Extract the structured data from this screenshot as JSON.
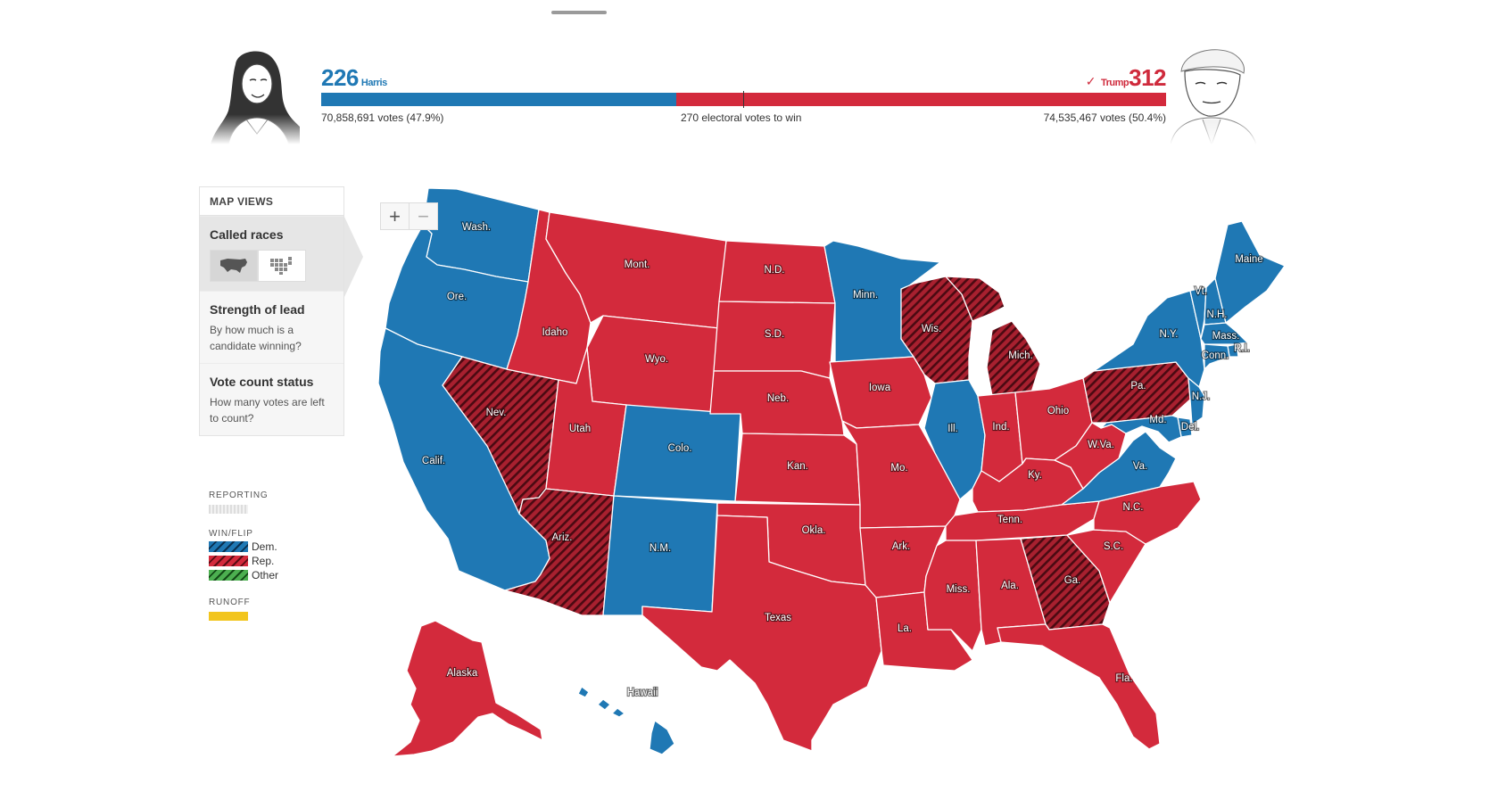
{
  "scoreboard": {
    "harris": {
      "ev": "226",
      "name": "Harris",
      "votes": "70,858,691 votes (47.9%)",
      "color": "#1f78b4",
      "ev_value": 226
    },
    "trump": {
      "ev": "312",
      "name": "Trump",
      "votes": "74,535,467 votes (50.4%)",
      "color": "#d32a3c",
      "ev_value": 312,
      "winner": true
    },
    "threshold": "270 electoral votes to win",
    "total_ev": 538
  },
  "panel": {
    "heading": "MAP VIEWS",
    "views": [
      {
        "title": "Called races",
        "desc": "",
        "active": true
      },
      {
        "title": "Strength of lead",
        "desc": "By how much is a candidate winning?"
      },
      {
        "title": "Vote count status",
        "desc": "How many votes are left to count?"
      }
    ],
    "toggle_icons": [
      "us-map-icon",
      "cartogram-icon"
    ]
  },
  "legend": {
    "reporting": "REPORTING",
    "winflip": "WIN/FLIP",
    "dem": "Dem.",
    "rep": "Rep.",
    "other": "Other",
    "runoff": "RUNOFF",
    "colors": {
      "dem": "#1f78b4",
      "rep": "#d32a3c",
      "other": "#4caf50",
      "runoff": "#f2c51d"
    }
  },
  "zoom": {
    "in": "+",
    "out": "−"
  },
  "states": [
    {
      "abbr": "Wash.",
      "winner": "dem",
      "flip": false
    },
    {
      "abbr": "Ore.",
      "winner": "dem",
      "flip": false
    },
    {
      "abbr": "Calif.",
      "winner": "dem",
      "flip": false
    },
    {
      "abbr": "Nev.",
      "winner": "rep",
      "flip": true
    },
    {
      "abbr": "Idaho",
      "winner": "rep",
      "flip": false
    },
    {
      "abbr": "Mont.",
      "winner": "rep",
      "flip": false
    },
    {
      "abbr": "Wyo.",
      "winner": "rep",
      "flip": false
    },
    {
      "abbr": "Utah",
      "winner": "rep",
      "flip": false
    },
    {
      "abbr": "Ariz.",
      "winner": "rep",
      "flip": true
    },
    {
      "abbr": "Colo.",
      "winner": "dem",
      "flip": false
    },
    {
      "abbr": "N.M.",
      "winner": "dem",
      "flip": false
    },
    {
      "abbr": "N.D.",
      "winner": "rep",
      "flip": false
    },
    {
      "abbr": "S.D.",
      "winner": "rep",
      "flip": false
    },
    {
      "abbr": "Neb.",
      "winner": "rep",
      "flip": false
    },
    {
      "abbr": "Kan.",
      "winner": "rep",
      "flip": false
    },
    {
      "abbr": "Okla.",
      "winner": "rep",
      "flip": false
    },
    {
      "abbr": "Texas",
      "winner": "rep",
      "flip": false
    },
    {
      "abbr": "Minn.",
      "winner": "dem",
      "flip": false
    },
    {
      "abbr": "Iowa",
      "winner": "rep",
      "flip": false
    },
    {
      "abbr": "Mo.",
      "winner": "rep",
      "flip": false
    },
    {
      "abbr": "Ark.",
      "winner": "rep",
      "flip": false
    },
    {
      "abbr": "La.",
      "winner": "rep",
      "flip": false
    },
    {
      "abbr": "Wis.",
      "winner": "rep",
      "flip": true
    },
    {
      "abbr": "Ill.",
      "winner": "dem",
      "flip": false
    },
    {
      "abbr": "Mich.",
      "winner": "rep",
      "flip": true
    },
    {
      "abbr": "Ind.",
      "winner": "rep",
      "flip": false
    },
    {
      "abbr": "Ohio",
      "winner": "rep",
      "flip": false
    },
    {
      "abbr": "Ky.",
      "winner": "rep",
      "flip": false
    },
    {
      "abbr": "Tenn.",
      "winner": "rep",
      "flip": false
    },
    {
      "abbr": "Miss.",
      "winner": "rep",
      "flip": false
    },
    {
      "abbr": "Ala.",
      "winner": "rep",
      "flip": false
    },
    {
      "abbr": "Ga.",
      "winner": "rep",
      "flip": true
    },
    {
      "abbr": "Fla.",
      "winner": "rep",
      "flip": false
    },
    {
      "abbr": "S.C.",
      "winner": "rep",
      "flip": false
    },
    {
      "abbr": "N.C.",
      "winner": "rep",
      "flip": false
    },
    {
      "abbr": "Va.",
      "winner": "dem",
      "flip": false
    },
    {
      "abbr": "W.Va.",
      "winner": "rep",
      "flip": false
    },
    {
      "abbr": "Pa.",
      "winner": "rep",
      "flip": true
    },
    {
      "abbr": "N.Y.",
      "winner": "dem",
      "flip": false
    },
    {
      "abbr": "Vt.",
      "winner": "dem",
      "flip": false
    },
    {
      "abbr": "N.H.",
      "winner": "dem",
      "flip": false
    },
    {
      "abbr": "Maine",
      "winner": "dem",
      "flip": false
    },
    {
      "abbr": "Mass.",
      "winner": "dem",
      "flip": false
    },
    {
      "abbr": "R.I.",
      "winner": "dem",
      "flip": false
    },
    {
      "abbr": "Conn.",
      "winner": "dem",
      "flip": false
    },
    {
      "abbr": "N.J.",
      "winner": "dem",
      "flip": false
    },
    {
      "abbr": "Del.",
      "winner": "dem",
      "flip": false
    },
    {
      "abbr": "Md.",
      "winner": "dem",
      "flip": false
    },
    {
      "abbr": "Alaska",
      "winner": "rep",
      "flip": false
    },
    {
      "abbr": "Hawaii",
      "winner": "dem",
      "flip": false
    }
  ]
}
